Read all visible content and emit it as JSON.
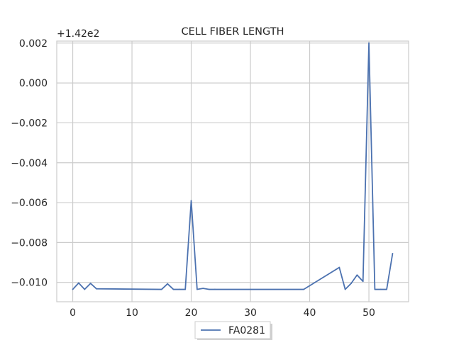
{
  "chart_data": {
    "type": "line",
    "title": "CELL FIBER LENGTH",
    "xlabel": "",
    "ylabel": "",
    "y_offset_label": "+1.42e2",
    "xlim": [
      -2.7,
      56.7
    ],
    "ylim": [
      -0.01097,
      0.0021
    ],
    "x_ticks": [
      0,
      10,
      20,
      30,
      40,
      50
    ],
    "x_tick_labels": [
      "0",
      "10",
      "20",
      "30",
      "40",
      "50"
    ],
    "y_ticks": [
      0.002,
      0.0,
      -0.002,
      -0.004,
      -0.006,
      -0.008,
      -0.01
    ],
    "y_tick_labels": [
      "0.002",
      "0.000",
      "−0.002",
      "−0.004",
      "−0.006",
      "−0.008",
      "−0.010"
    ],
    "grid": true,
    "legend_position": "bottom-center",
    "series": [
      {
        "name": "FA0281",
        "color": "#4c72b0",
        "x": [
          0,
          1,
          2,
          3,
          4,
          15,
          16,
          17,
          18,
          19,
          20,
          21,
          22,
          23,
          24,
          39,
          45,
          46,
          47,
          48,
          49,
          50,
          51,
          52,
          53,
          54
        ],
        "y": [
          -0.01035,
          -0.01003,
          -0.01035,
          -0.01005,
          -0.01032,
          -0.01035,
          -0.01007,
          -0.01035,
          -0.01035,
          -0.01035,
          -0.0059,
          -0.01035,
          -0.0103,
          -0.01035,
          -0.01035,
          -0.01035,
          -0.00925,
          -0.01035,
          -0.01005,
          -0.00963,
          -0.00995,
          0.002,
          -0.01035,
          -0.01035,
          -0.01035,
          -0.00855
        ]
      }
    ]
  }
}
